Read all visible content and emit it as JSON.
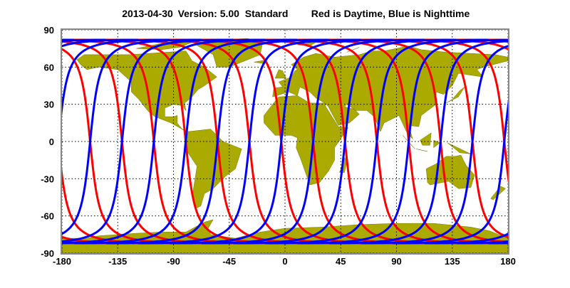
{
  "title": {
    "date": "2013-04-30",
    "version": "Version: 5.00  Standard",
    "legend_note": "Red is Daytime, Blue is Nighttime"
  },
  "chart_data": {
    "type": "line",
    "projection": "equirectangular",
    "xlim": [
      -180,
      180
    ],
    "ylim": [
      -90,
      90
    ],
    "x_ticks": [
      "-180",
      "-135",
      "-90",
      "-45",
      "0",
      "45",
      "90",
      "135",
      "180"
    ],
    "y_ticks": [
      "90",
      "60",
      "30",
      "0",
      "-30",
      "-60",
      "-90"
    ],
    "grid": true,
    "max_track_latitude": 82,
    "orbits_per_day": 14,
    "first_ascending_crossing_longitude": -183,
    "series": [
      {
        "pass": "descending",
        "meaning": "Daytime",
        "color": "#ff0000"
      },
      {
        "pass": "ascending",
        "meaning": "Nighttime",
        "color": "#0000ff"
      }
    ],
    "land_color": "#aaaa00",
    "frame_color": "#888888"
  }
}
